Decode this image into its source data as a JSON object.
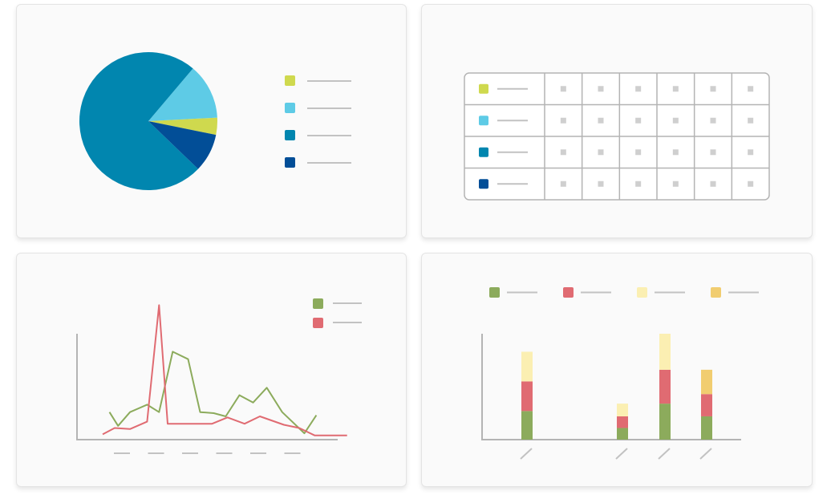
{
  "colors": {
    "yellow_green": "#cfd94e",
    "light_blue": "#5ecbe6",
    "teal": "#0186af",
    "dark_blue": "#024e97",
    "green": "#8cab5c",
    "red": "#e06b72",
    "pale_yellow": "#fbefb2",
    "mustard": "#f1cd70",
    "axis": "#b4b4b4",
    "placeholder": "#c2c2c2"
  },
  "chart_data": [
    {
      "type": "pie",
      "legend_placement": "right",
      "legend_labels_rendered_as": "placeholder-lines",
      "slices": [
        {
          "value": 4,
          "color": "#cfd94e"
        },
        {
          "value": 13,
          "color": "#5ecbe6"
        },
        {
          "value": 74,
          "color": "#0186af"
        },
        {
          "value": 9,
          "color": "#024e97"
        }
      ],
      "legend": [
        {
          "color": "#cfd94e"
        },
        {
          "color": "#5ecbe6"
        },
        {
          "color": "#0186af"
        },
        {
          "color": "#024e97"
        }
      ]
    },
    {
      "type": "table",
      "rows": 4,
      "value_columns": 6,
      "cells_rendered_as": "placeholder-squares",
      "row_swatches": [
        "#cfd94e",
        "#5ecbe6",
        "#0186af",
        "#024e97"
      ]
    },
    {
      "type": "line",
      "legend_placement": "top-right",
      "grid": false,
      "xlim": [
        0,
        16
      ],
      "ylim": [
        0,
        10
      ],
      "x_tick_count": 6,
      "x_ticks_rendered_as": "placeholder-lines",
      "series": [
        {
          "color": "#8cab5c",
          "points": [
            [
              1.9,
              2.6
            ],
            [
              2.4,
              1.3
            ],
            [
              3.1,
              2.6
            ],
            [
              4.1,
              3.3
            ],
            [
              4.8,
              2.6
            ],
            [
              5.6,
              8.3
            ],
            [
              6.5,
              7.6
            ],
            [
              7.2,
              2.6
            ],
            [
              8.0,
              2.5
            ],
            [
              8.7,
              2.2
            ],
            [
              9.5,
              4.2
            ],
            [
              10.3,
              3.5
            ],
            [
              11.1,
              4.9
            ],
            [
              12.0,
              2.6
            ],
            [
              13.3,
              0.6
            ],
            [
              14.0,
              2.3
            ]
          ]
        },
        {
          "color": "#e06b72",
          "points": [
            [
              1.5,
              0.5
            ],
            [
              2.2,
              1.1
            ],
            [
              3.1,
              1.0
            ],
            [
              4.1,
              1.7
            ],
            [
              4.8,
              12.7
            ],
            [
              5.3,
              1.5
            ],
            [
              6.3,
              1.5
            ],
            [
              7.9,
              1.5
            ],
            [
              8.8,
              2.1
            ],
            [
              9.8,
              1.5
            ],
            [
              10.7,
              2.2
            ],
            [
              12.1,
              1.4
            ],
            [
              13.0,
              1.1
            ],
            [
              13.9,
              0.4
            ],
            [
              15.8,
              0.4
            ]
          ]
        }
      ]
    },
    {
      "type": "bar",
      "stacked": true,
      "legend_placement": "top",
      "ylim": [
        0,
        10
      ],
      "x_ticks_rendered_as": "diagonal-placeholder-lines",
      "categories": [
        "",
        "",
        "",
        ""
      ],
      "series": [
        {
          "color": "#8cab5c",
          "values": [
            2.7,
            1.1,
            3.4,
            2.2
          ]
        },
        {
          "color": "#e06b72",
          "values": [
            2.8,
            1.1,
            3.2,
            2.1
          ]
        },
        {
          "color": "#fbefb2",
          "values": [
            2.8,
            1.2,
            3.4,
            0
          ]
        },
        {
          "color": "#f1cd70",
          "values": [
            0,
            0,
            0,
            2.3
          ]
        }
      ]
    }
  ]
}
